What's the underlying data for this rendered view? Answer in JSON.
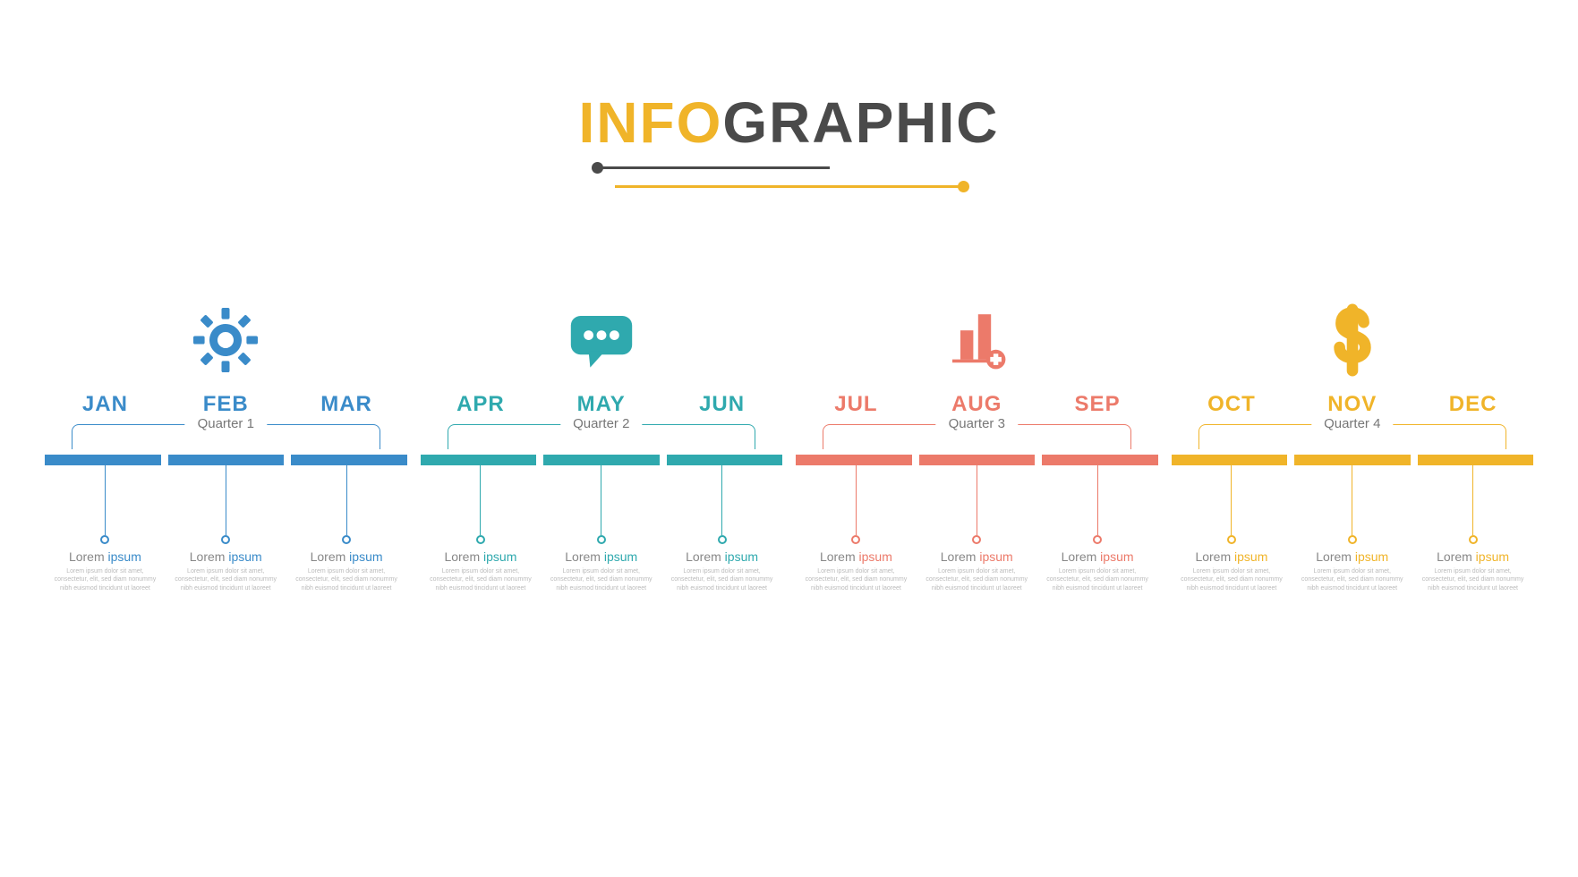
{
  "title": {
    "part1_text": "INFO",
    "part1_color": "#f0b429",
    "part2_text": "GRAPHIC",
    "part2_color": "#4a4a4a",
    "fontsize": 64
  },
  "layout": {
    "type": "timeline-infographic",
    "background_color": "#ffffff"
  },
  "placeholder": {
    "subtitle_grey": "Lorem",
    "subtitle_colored": "ipsum",
    "body": "Lorem ipsum dolor sit amet, consectetur, elit, sed diam nonummy nibh euismod tincidunt ut laoreet"
  },
  "quarters": [
    {
      "label": "Quarter 1",
      "color": "#3a8bc9",
      "icon": "gear-icon",
      "months": [
        "JAN",
        "FEB",
        "MAR"
      ]
    },
    {
      "label": "Quarter 2",
      "color": "#2fa9ae",
      "icon": "chat-icon",
      "months": [
        "APR",
        "MAY",
        "JUN"
      ]
    },
    {
      "label": "Quarter 3",
      "color": "#ec7a6a",
      "icon": "chart-plus-icon",
      "months": [
        "JUL",
        "AUG",
        "SEP"
      ]
    },
    {
      "label": "Quarter 4",
      "color": "#f0b429",
      "icon": "dollar-icon",
      "months": [
        "OCT",
        "NOV",
        "DEC"
      ]
    }
  ]
}
